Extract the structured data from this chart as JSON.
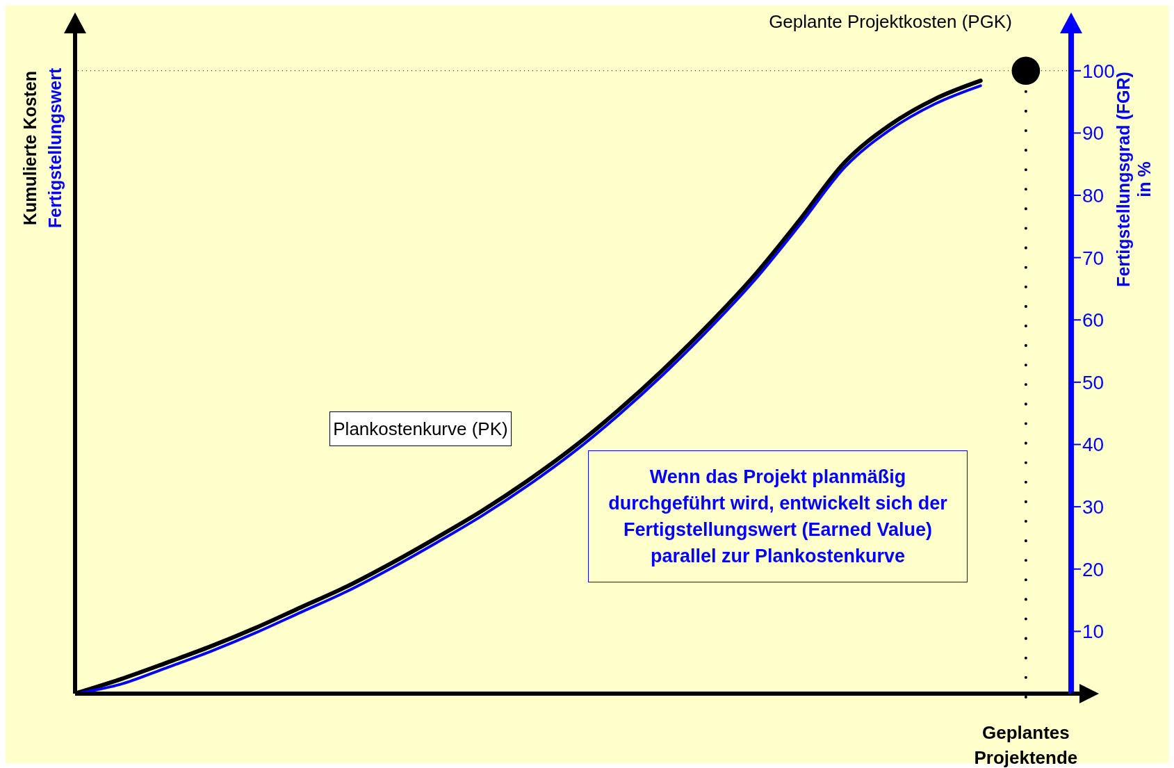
{
  "chart_data": {
    "type": "line",
    "ylabel": "Kumulierte Kosten",
    "y2label": "Fertigstellungsgrad (FGR) in %",
    "categories": [
      null,
      null,
      null,
      null,
      null,
      null,
      null,
      null,
      null,
      null,
      null,
      null,
      null,
      null,
      null,
      null,
      null,
      null,
      null,
      null,
      null,
      null,
      null
    ],
    "series": [
      {
        "name": "Plankostenkurve (PK)",
        "color": "#000000",
        "axis": "y2",
        "values": [
          0,
          2.3,
          4.9,
          7.6,
          10.6,
          13.9,
          17.2,
          21.0,
          25.1,
          29.4,
          34.2,
          39.5,
          45.5,
          52.1,
          59.3,
          67.1,
          76.0,
          85.3,
          91.3,
          95.5,
          98.4,
          null,
          null
        ]
      },
      {
        "name": "Fertigstellungswert",
        "color": "#0000ff",
        "axis": "y2",
        "values": [
          0,
          1.5,
          4.1,
          6.8,
          9.8,
          13.1,
          16.4,
          20.2,
          24.3,
          28.6,
          33.4,
          38.7,
          44.7,
          51.3,
          58.5,
          66.3,
          75.2,
          84.5,
          90.5,
          94.7,
          97.6,
          null,
          null
        ]
      },
      {
        "type": "scatter",
        "color": "#000000",
        "axis": "y2",
        "marker": "circle",
        "values": [
          null,
          null,
          null,
          null,
          null,
          null,
          null,
          null,
          null,
          null,
          null,
          null,
          null,
          null,
          null,
          null,
          null,
          null,
          null,
          null,
          null,
          100,
          null
        ]
      }
    ],
    "y2lim": [
      0,
      106
    ],
    "y2ticks": [
      10,
      20,
      30,
      40,
      50,
      60,
      70,
      80,
      90,
      100
    ],
    "ref_lines": [
      {
        "axis": "y2",
        "value": 100,
        "line_style": "dotted",
        "color": "#000000"
      }
    ],
    "annotations": [
      "Geplante Projektkosten (PGK)",
      "Wenn das Projekt planmäßig durchgeführt wird, entwickelt sich der Fertigstellungswert (Earned Value) parallel zur Plankostenkurve",
      "Geplantes Projektende"
    ],
    "grid": false,
    "legend": false,
    "marker": "none",
    "line_style": "solid"
  }
}
